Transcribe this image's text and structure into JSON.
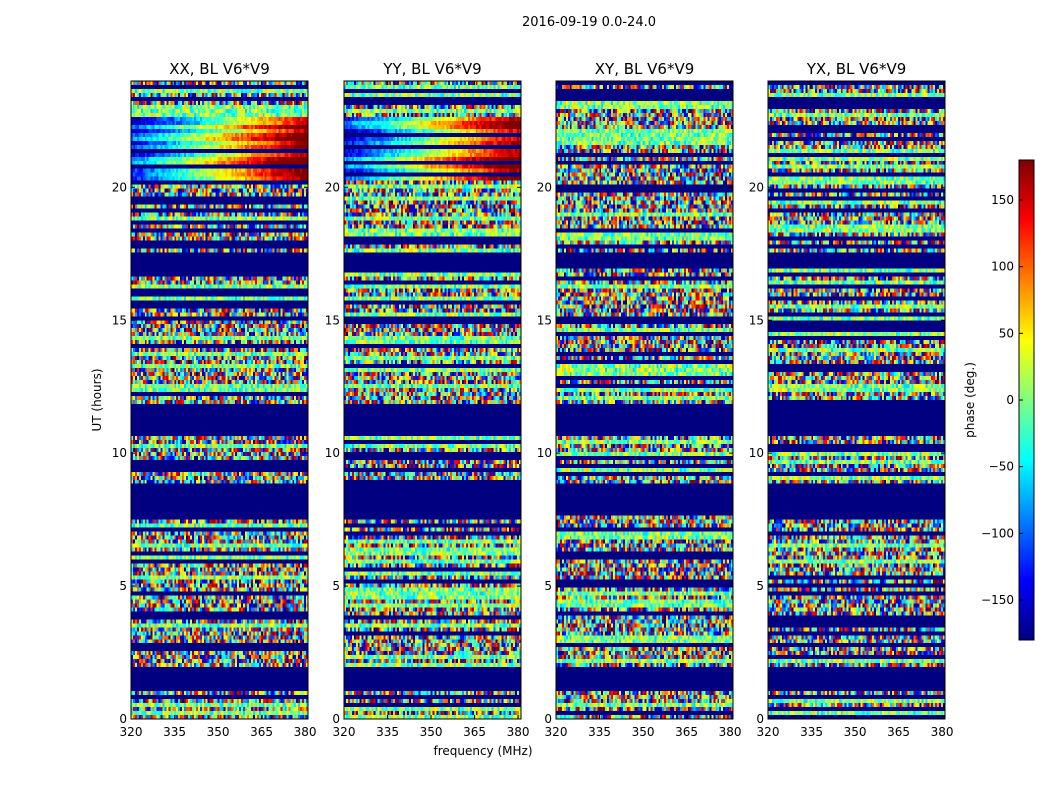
{
  "figure": {
    "suptitle": "2016-09-19 0.0-24.0",
    "xlabel": "frequency (MHz)",
    "ylabel": "UT (hours)"
  },
  "colorbar": {
    "label": "phase (deg.)",
    "range": [
      -180,
      180
    ],
    "ticks": [
      -150,
      -100,
      -50,
      0,
      50,
      100,
      150
    ],
    "tick_labels": [
      "−150",
      "−100",
      "−50",
      "0",
      "50",
      "100",
      "150"
    ],
    "colormap": "jet",
    "colors": [
      "#00007f",
      "#0000ff",
      "#007fff",
      "#00ffff",
      "#7fff7f",
      "#ffff00",
      "#ff7f00",
      "#ff0000",
      "#7f0000"
    ]
  },
  "chart_data": [
    {
      "type": "heatmap",
      "title": "XX, BL V6*V9",
      "x_range": [
        320,
        381
      ],
      "y_range": [
        0,
        24
      ],
      "x_ticks": [
        320,
        335,
        350,
        365,
        380
      ],
      "y_ticks": [
        0,
        5,
        10,
        15,
        20
      ],
      "flagged_ut_ranges": [
        [
          1.1,
          2.0
        ],
        [
          7.6,
          8.8
        ],
        [
          10.7,
          11.8
        ],
        [
          16.9,
          17.5
        ]
      ]
    },
    {
      "type": "heatmap",
      "title": "YY, BL V6*V9",
      "x_range": [
        320,
        381
      ],
      "y_range": [
        0,
        24
      ],
      "x_ticks": [
        320,
        335,
        350,
        365,
        380
      ],
      "y_ticks": [
        0,
        5,
        10,
        15,
        20
      ],
      "flagged_ut_ranges": [
        [
          1.1,
          2.0
        ],
        [
          7.6,
          8.8
        ],
        [
          10.7,
          11.8
        ],
        [
          16.9,
          17.5
        ]
      ]
    },
    {
      "type": "heatmap",
      "title": "XY, BL V6*V9",
      "x_range": [
        320,
        381
      ],
      "y_range": [
        0,
        24
      ],
      "x_ticks": [
        320,
        335,
        350,
        365,
        380
      ],
      "y_ticks": [
        0,
        5,
        10,
        15,
        20
      ],
      "flagged_ut_ranges": [
        [
          1.1,
          2.0
        ],
        [
          7.6,
          8.8
        ],
        [
          10.7,
          11.8
        ],
        [
          16.9,
          17.5
        ]
      ]
    },
    {
      "type": "heatmap",
      "title": "YX, BL V6*V9",
      "x_range": [
        320,
        381
      ],
      "y_range": [
        0,
        24
      ],
      "x_ticks": [
        320,
        335,
        350,
        365,
        380
      ],
      "y_ticks": [
        0,
        5,
        10,
        15,
        20
      ],
      "flagged_ut_ranges": [
        [
          1.1,
          2.0
        ],
        [
          7.6,
          8.8
        ],
        [
          10.7,
          11.8
        ],
        [
          16.9,
          17.5
        ]
      ]
    }
  ]
}
